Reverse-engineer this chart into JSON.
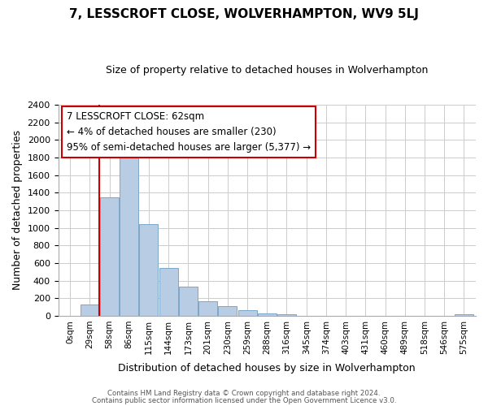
{
  "title": "7, LESSCROFT CLOSE, WOLVERHAMPTON, WV9 5LJ",
  "subtitle": "Size of property relative to detached houses in Wolverhampton",
  "xlabel": "Distribution of detached houses by size in Wolverhampton",
  "ylabel": "Number of detached properties",
  "bar_labels": [
    "0sqm",
    "29sqm",
    "58sqm",
    "86sqm",
    "115sqm",
    "144sqm",
    "173sqm",
    "201sqm",
    "230sqm",
    "259sqm",
    "288sqm",
    "316sqm",
    "345sqm",
    "374sqm",
    "403sqm",
    "431sqm",
    "460sqm",
    "489sqm",
    "518sqm",
    "546sqm",
    "575sqm"
  ],
  "bar_values": [
    0,
    130,
    1350,
    1860,
    1040,
    540,
    330,
    165,
    110,
    65,
    30,
    20,
    0,
    0,
    0,
    0,
    0,
    0,
    0,
    0,
    15
  ],
  "bar_color": "#b8cce4",
  "bar_edge_color": "#7ba7c9",
  "ylim": [
    0,
    2400
  ],
  "yticks": [
    0,
    200,
    400,
    600,
    800,
    1000,
    1200,
    1400,
    1600,
    1800,
    2000,
    2200,
    2400
  ],
  "redline_x": 1.5,
  "annotation_title": "7 LESSCROFT CLOSE: 62sqm",
  "annotation_line1": "← 4% of detached houses are smaller (230)",
  "annotation_line2": "95% of semi-detached houses are larger (5,377) →",
  "annotation_box_color": "#ffffff",
  "annotation_box_edge": "#cc0000",
  "footer1": "Contains HM Land Registry data © Crown copyright and database right 2024.",
  "footer2": "Contains public sector information licensed under the Open Government Licence v3.0.",
  "background_color": "#ffffff",
  "grid_color": "#cccccc"
}
